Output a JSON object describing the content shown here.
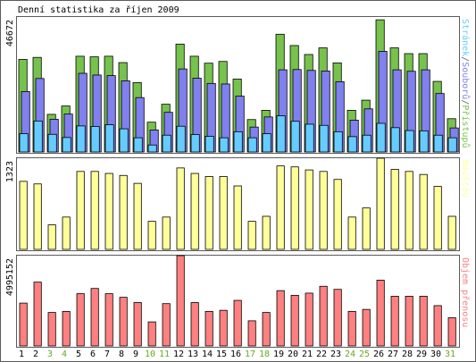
{
  "title": "Denní statistika za říjen 2009",
  "colors": {
    "background": "#ffffff",
    "panel_bg": "#ffffff",
    "frame": "#5b5b5b",
    "axis_text": "#000000",
    "weekday_label": "#000000",
    "weekend_label": "#66aa22",
    "pristupu": "#77c24c",
    "soubory": "#8080ef",
    "stranky": "#66ccff",
    "navstevy": "#ffff99",
    "prenos": "#ff8080",
    "bar_stroke": "#000000"
  },
  "chart_data": [
    {
      "type": "bar",
      "ylabel": "46672",
      "ylim": [
        0,
        46672
      ],
      "grid": false,
      "legend": "right side, vertical",
      "legend_text": [
        {
          "text": "Stránek",
          "color_key": "stranky"
        },
        {
          "text": "/",
          "color_key": "frame"
        },
        {
          "text": "Souborů",
          "color_key": "soubory"
        },
        {
          "text": "/",
          "color_key": "frame"
        },
        {
          "text": "Přístupů",
          "color_key": "pristupu"
        }
      ],
      "categories": [
        "1",
        "2",
        "3",
        "4",
        "5",
        "6",
        "7",
        "8",
        "9",
        "10",
        "11",
        "12",
        "13",
        "14",
        "15",
        "16",
        "17",
        "18",
        "19",
        "20",
        "21",
        "22",
        "23",
        "24",
        "25",
        "26",
        "27",
        "28",
        "29",
        "30",
        "31"
      ],
      "weekend": [
        false,
        false,
        true,
        true,
        false,
        false,
        false,
        false,
        false,
        true,
        true,
        false,
        false,
        false,
        false,
        false,
        true,
        true,
        false,
        false,
        false,
        false,
        false,
        true,
        true,
        false,
        false,
        false,
        false,
        false,
        true
      ],
      "series": [
        {
          "name": "Přístupů",
          "color_key": "pristupu",
          "values": [
            32000,
            32700,
            13000,
            15900,
            33100,
            32900,
            33100,
            30900,
            24000,
            10300,
            16500,
            37300,
            33100,
            30700,
            31300,
            25200,
            11200,
            14400,
            40700,
            36800,
            33700,
            36000,
            30800,
            14400,
            17900,
            45700,
            36000,
            34000,
            34000,
            24400,
            11500
          ]
        },
        {
          "name": "Souborů",
          "color_key": "soubory",
          "values": [
            20900,
            25400,
            11300,
            13100,
            27200,
            26600,
            26400,
            24600,
            18800,
            7600,
            13700,
            28700,
            25500,
            23700,
            23500,
            19300,
            8600,
            12100,
            28400,
            28500,
            28200,
            28000,
            24300,
            11000,
            14900,
            34800,
            28400,
            27900,
            28400,
            20200,
            8300
          ]
        },
        {
          "name": "Stránek",
          "color_key": "stranky",
          "values": [
            6300,
            10700,
            6100,
            5000,
            9000,
            8800,
            9400,
            8000,
            4900,
            2400,
            5800,
            8900,
            6000,
            5400,
            4900,
            7000,
            4900,
            6300,
            12500,
            10600,
            9600,
            9200,
            7000,
            5300,
            5800,
            9900,
            8400,
            7400,
            7300,
            5800,
            4900
          ]
        }
      ]
    },
    {
      "type": "bar",
      "ylabel": "1323",
      "ylim": [
        0,
        1323
      ],
      "grid": false,
      "legend": "right side, vertical",
      "legend_text": [
        {
          "text": "Návštěv",
          "color_key": "navstevy"
        }
      ],
      "categories": [
        "1",
        "2",
        "3",
        "4",
        "5",
        "6",
        "7",
        "8",
        "9",
        "10",
        "11",
        "12",
        "13",
        "14",
        "15",
        "16",
        "17",
        "18",
        "19",
        "20",
        "21",
        "22",
        "23",
        "24",
        "25",
        "26",
        "27",
        "28",
        "29",
        "30",
        "31"
      ],
      "series": [
        {
          "name": "Návštěv",
          "color_key": "navstevy",
          "values": [
            987,
            950,
            356,
            469,
            1131,
            1131,
            1102,
            1073,
            958,
            407,
            469,
            1182,
            1102,
            1058,
            1058,
            921,
            407,
            480,
            1211,
            1197,
            1153,
            1131,
            1015,
            469,
            601,
            1323,
            1161,
            1131,
            1087,
            914,
            480
          ]
        }
      ]
    },
    {
      "type": "bar",
      "ylabel": "4995152",
      "ylim": [
        0,
        4995152
      ],
      "grid": false,
      "legend": "right side, vertical",
      "legend_text": [
        {
          "text": "Objem přenosu",
          "color_key": "prenos"
        }
      ],
      "categories": [
        "1",
        "2",
        "3",
        "4",
        "5",
        "6",
        "7",
        "8",
        "9",
        "10",
        "11",
        "12",
        "13",
        "14",
        "15",
        "16",
        "17",
        "18",
        "19",
        "20",
        "21",
        "22",
        "23",
        "24",
        "25",
        "26",
        "27",
        "28",
        "29",
        "30",
        "31"
      ],
      "series": [
        {
          "name": "Objem přenosu",
          "color_key": "prenos",
          "values": [
            2370000,
            3530000,
            1850000,
            1910000,
            2890000,
            3180000,
            2890000,
            2690000,
            2400000,
            1330000,
            2340000,
            4995152,
            2400000,
            1910000,
            1970000,
            2520000,
            1390000,
            1850000,
            3060000,
            2800000,
            2920000,
            3300000,
            3130000,
            1910000,
            2020000,
            3640000,
            2750000,
            2750000,
            2750000,
            2230000,
            1560000
          ]
        }
      ]
    }
  ]
}
